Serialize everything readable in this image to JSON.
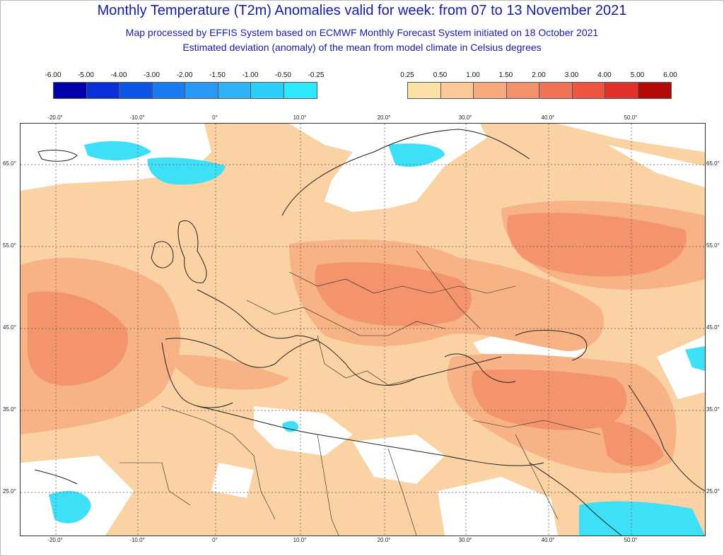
{
  "header": {
    "title": "Monthly Temperature (T2m) Anomalies valid for week: from 07 to 13 November 2021",
    "subtitle1": "Map processed by EFFIS System based on ECMWF Monthly Forecast System initiated on 18 October 2021",
    "subtitle2": "Estimated deviation (anomaly) of the mean from model climate in Celsius degrees"
  },
  "legend": {
    "negative": {
      "ticks": [
        "-6.00",
        "-5.00",
        "-4.00",
        "-3.00",
        "-2.00",
        "-1.50",
        "-1.00",
        "-0.50",
        "-0.25"
      ],
      "colors": [
        "#0000a8",
        "#0a2fd6",
        "#0d55e6",
        "#1a7af0",
        "#2a98f5",
        "#30b4f8",
        "#2ad0fa",
        "#2ee8fc"
      ]
    },
    "positive": {
      "ticks": [
        "0.25",
        "0.50",
        "1.00",
        "1.50",
        "2.00",
        "3.00",
        "4.00",
        "5.00",
        "6.00"
      ],
      "colors": [
        "#fde0a6",
        "#fbc996",
        "#f7aa7c",
        "#f3916a",
        "#f07456",
        "#ec5540",
        "#e03228",
        "#b20a08"
      ]
    }
  },
  "map": {
    "longitude_labels": [
      "-20.0°",
      "-10.0°",
      "0°",
      "10.0°",
      "20.0°",
      "30.0°",
      "40.0°",
      "50.0°"
    ],
    "latitude_labels": [
      "65.0°",
      "55.0°",
      "45.0°",
      "35.0°",
      "25.0°"
    ],
    "colors": {
      "background": "#fbd2a4",
      "warm1": "#f7b286",
      "warm2": "#f3946d",
      "white": "#ffffff",
      "cold": "#3ee0f8",
      "coast": "#222222",
      "grid": "#555555"
    }
  }
}
